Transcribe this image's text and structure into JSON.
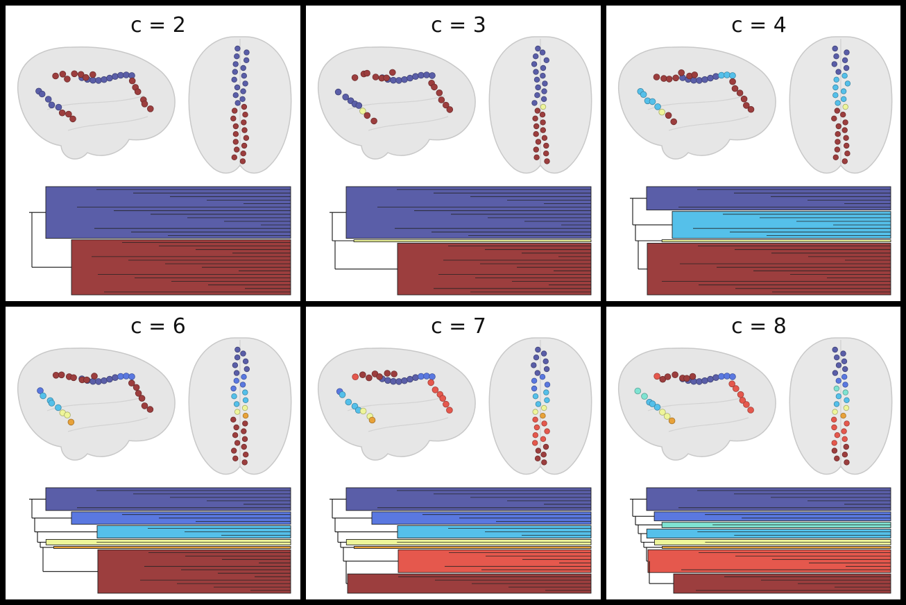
{
  "panels": [
    {
      "title": "c = 2",
      "clusters": [
        {
          "color": "#5a5ea8",
          "leaves": 15
        },
        {
          "color": "#9c3e3e",
          "leaves": 16
        }
      ]
    },
    {
      "title": "c = 3",
      "clusters": [
        {
          "color": "#5a5ea8",
          "leaves": 15
        },
        {
          "color": "#eef59a",
          "leaves": 1
        },
        {
          "color": "#9c3e3e",
          "leaves": 15
        }
      ]
    },
    {
      "title": "c = 4",
      "clusters": [
        {
          "color": "#5a5ea8",
          "leaves": 7
        },
        {
          "color": "#55c0ea",
          "leaves": 8
        },
        {
          "color": "#eef59a",
          "leaves": 1
        },
        {
          "color": "#9c3e3e",
          "leaves": 15
        }
      ]
    },
    {
      "title": "c = 6",
      "clusters": [
        {
          "color": "#5a5ea8",
          "leaves": 7
        },
        {
          "color": "#5a78e0",
          "leaves": 4
        },
        {
          "color": "#55c0ea",
          "leaves": 4
        },
        {
          "color": "#eef59a",
          "leaves": 2
        },
        {
          "color": "#e8a23a",
          "leaves": 1
        },
        {
          "color": "#9c3e3e",
          "leaves": 13
        }
      ]
    },
    {
      "title": "c = 7",
      "clusters": [
        {
          "color": "#5a5ea8",
          "leaves": 7
        },
        {
          "color": "#5a78e0",
          "leaves": 4
        },
        {
          "color": "#55c0ea",
          "leaves": 4
        },
        {
          "color": "#eef59a",
          "leaves": 2
        },
        {
          "color": "#e8a23a",
          "leaves": 1
        },
        {
          "color": "#e5584d",
          "leaves": 7
        },
        {
          "color": "#9c3e3e",
          "leaves": 6
        }
      ]
    },
    {
      "title": "c = 8",
      "clusters": [
        {
          "color": "#5a5ea8",
          "leaves": 7
        },
        {
          "color": "#5a78e0",
          "leaves": 3
        },
        {
          "color": "#7fe3d2",
          "leaves": 2
        },
        {
          "color": "#55c0ea",
          "leaves": 3
        },
        {
          "color": "#eef59a",
          "leaves": 2
        },
        {
          "color": "#e8a23a",
          "leaves": 1
        },
        {
          "color": "#e5584d",
          "leaves": 7
        },
        {
          "color": "#9c3e3e",
          "leaves": 6
        }
      ]
    }
  ]
}
